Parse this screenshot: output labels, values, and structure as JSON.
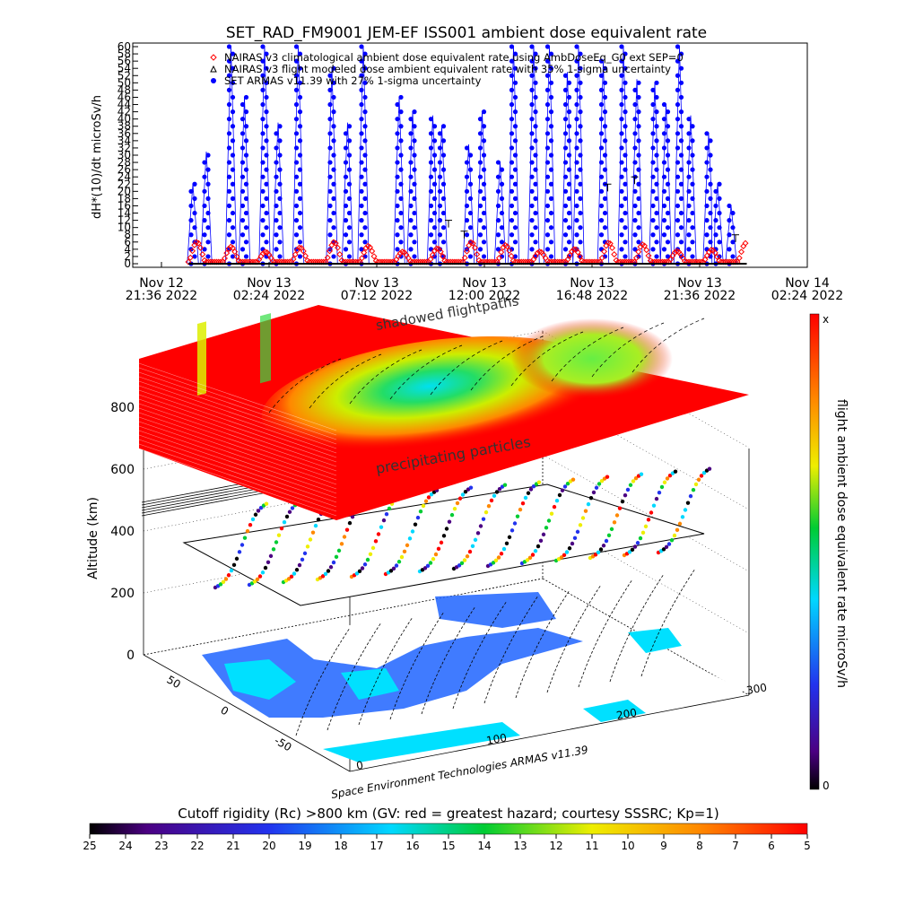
{
  "chart_data": [
    {
      "type": "scatter",
      "title": "SET_RAD_FM9001   JEM-EF ISS001 ambient dose equivalent rate",
      "ylabel": "dH*(10)/dt microSv/h",
      "xlabel": "",
      "ylim": [
        0,
        60
      ],
      "yticks": [
        "0",
        "2",
        "4",
        "6",
        "8",
        "10",
        "12",
        "14",
        "16",
        "18",
        "20",
        "22",
        "24",
        "26",
        "28",
        "30",
        "32",
        "34",
        "36",
        "38",
        "40",
        "42",
        "44",
        "46",
        "48",
        "50",
        "52",
        "54",
        "56",
        "58",
        "60"
      ],
      "xlim_hours": [
        0,
        28.8
      ],
      "xticks": [
        {
          "h": 0.0,
          "line1": "Nov 12",
          "line2": "21:36 2022"
        },
        {
          "h": 4.8,
          "line1": "Nov 13",
          "line2": "02:24 2022"
        },
        {
          "h": 9.6,
          "line1": "Nov 13",
          "line2": "07:12 2022"
        },
        {
          "h": 14.4,
          "line1": "Nov 13",
          "line2": "12:00 2022"
        },
        {
          "h": 19.2,
          "line1": "Nov 13",
          "line2": "16:48 2022"
        },
        {
          "h": 24.0,
          "line1": "Nov 13",
          "line2": "21:36 2022"
        },
        {
          "h": 28.8,
          "line1": "Nov 14",
          "line2": "02:24 2022"
        }
      ],
      "legend": [
        {
          "symbol": "diamond",
          "color": "#ff0000",
          "text": "NAIRAS v3 climatological ambient dose equivalent rate using AmbDoseEq_G0 ext SEP=0"
        },
        {
          "symbol": "triangle",
          "color": "#000000",
          "text": "NAIRAS v3 flight modeled dose ambient equivalent rate with 35% 1-sigma uncertainty"
        },
        {
          "symbol": "circle",
          "color": "#0000ff",
          "text": "SET ARMAS v11.39 with 27% 1-sigma uncertainty"
        }
      ],
      "legend_position": "top-left",
      "series": [
        {
          "name": "NAIRAS v3 climatological ambient dose equivalent rate using AmbDoseEq_G0 ext SEP=0",
          "color": "#ff0000",
          "x_range": [
            1.2,
            26.1
          ],
          "orbit_period_h": 1.53,
          "min": 0.5,
          "max": 6
        },
        {
          "name": "NAIRAS v3 flight modeled dose ambient equivalent rate with 35% 1-sigma uncertainty",
          "color": "#000000",
          "x_range": [
            1.2,
            26.1
          ],
          "min": 0,
          "max": 1
        },
        {
          "name": "SET ARMAS v11.39 with 27% 1-sigma uncertainty",
          "color": "#0000ff",
          "peaks": [
            [
              1.4,
              22
            ],
            [
              2.0,
              31
            ],
            [
              3.1,
              60
            ],
            [
              3.7,
              46
            ],
            [
              4.6,
              60
            ],
            [
              5.2,
              39
            ],
            [
              6.1,
              60
            ],
            [
              7.6,
              54
            ],
            [
              8.3,
              39
            ],
            [
              9.0,
              60
            ],
            [
              10.6,
              46
            ],
            [
              11.2,
              42
            ],
            [
              12.1,
              41
            ],
            [
              12.5,
              38
            ],
            [
              13.7,
              33
            ],
            [
              14.3,
              42
            ],
            [
              15.1,
              28
            ],
            [
              15.7,
              60
            ],
            [
              16.6,
              60
            ],
            [
              17.3,
              60
            ],
            [
              18.1,
              53
            ],
            [
              18.6,
              60
            ],
            [
              19.7,
              56
            ],
            [
              20.6,
              60
            ],
            [
              21.2,
              51
            ],
            [
              22.0,
              50
            ],
            [
              22.5,
              44
            ],
            [
              23.1,
              60
            ],
            [
              23.6,
              41
            ],
            [
              24.4,
              36
            ],
            [
              24.8,
              22
            ],
            [
              25.4,
              16
            ]
          ],
          "baseline": 0
        }
      ]
    },
    {
      "type": "heatmap",
      "subtype": "3d-orbit-track",
      "zlabel": "Altitude (km)",
      "zticks": [
        "0",
        "200",
        "400",
        "600",
        "800"
      ],
      "lon_ticks": [
        "0",
        "100",
        "200",
        "300"
      ],
      "lat_ticks": [
        "-50",
        "0",
        "50"
      ],
      "annotations": [
        "shadowed flightpaths",
        "precipitating particles"
      ],
      "credit": "Space Environment Technologies ARMAS v11.39",
      "colorbar_right": {
        "label": "flight ambient dose equivalent rate microSv/h",
        "top": "x",
        "bottom": "0"
      },
      "colorbar_bottom": {
        "label": "Cutoff rigidity (Rc) >800 km (GV: red = greatest hazard; courtesy SSSRC; Kp=1)",
        "ticks": [
          "25",
          "24",
          "23",
          "22",
          "21",
          "20",
          "19",
          "18",
          "17",
          "16",
          "15",
          "14",
          "13",
          "12",
          "11",
          "10",
          "9",
          "8",
          "7",
          "6",
          "5"
        ]
      }
    }
  ],
  "colors": {
    "armas": "#0000ff",
    "nairas_clim": "#ff0000",
    "nairas_flight": "#000000"
  }
}
